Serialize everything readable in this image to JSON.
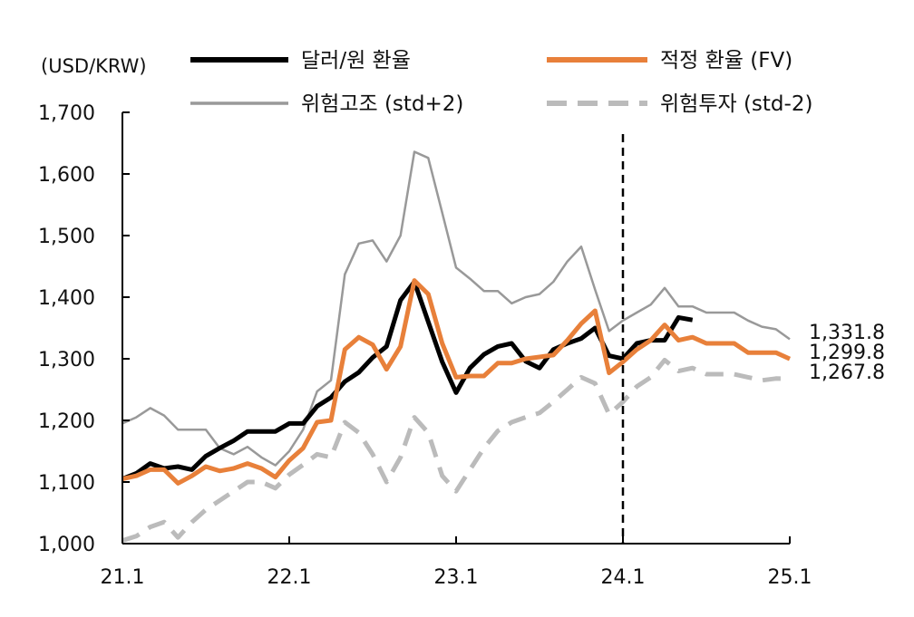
{
  "chart_data": {
    "type": "line",
    "unit_label": "(USD/KRW)",
    "ylim": [
      1000,
      1700
    ],
    "y_ticks": [
      "1,000",
      "1,100",
      "1,200",
      "1,300",
      "1,400",
      "1,500",
      "1,600",
      "1,700"
    ],
    "y_tick_values": [
      1000,
      1100,
      1200,
      1300,
      1400,
      1500,
      1600,
      1700
    ],
    "x_ticks": [
      "21.1",
      "22.1",
      "23.1",
      "24.1",
      "25.1"
    ],
    "x_tick_index": [
      0,
      12,
      24,
      36,
      48
    ],
    "x_count": 49,
    "grid": false,
    "legend_placement": "top",
    "vertical_marker": {
      "x_label": "24.1",
      "style": "dashed"
    },
    "series": [
      {
        "name": "달러/원 환율",
        "color": "#000000",
        "style": "solid-thick",
        "values": [
          1105,
          1114,
          1130,
          1122,
          1125,
          1120,
          1142,
          1155,
          1167,
          1182,
          1182,
          1182,
          1195,
          1195,
          1223,
          1237,
          1263,
          1278,
          1302,
          1320,
          1395,
          1425,
          1360,
          1295,
          1245,
          1285,
          1307,
          1320,
          1325,
          1296,
          1285,
          1315,
          1325,
          1333,
          1350,
          1305,
          1300,
          1325,
          1330,
          1330,
          1367,
          1363
        ]
      },
      {
        "name": "적정 환율 (FV)",
        "color": "#E8803A",
        "style": "solid-thick",
        "values": [
          1105,
          1110,
          1120,
          1120,
          1098,
          1110,
          1125,
          1118,
          1122,
          1130,
          1122,
          1108,
          1135,
          1155,
          1197,
          1200,
          1315,
          1335,
          1323,
          1283,
          1320,
          1427,
          1405,
          1325,
          1270,
          1272,
          1272,
          1293,
          1293,
          1300,
          1303,
          1306,
          1330,
          1357,
          1378,
          1277,
          1295,
          1315,
          1330,
          1355,
          1330,
          1335,
          1325,
          1325,
          1325,
          1310,
          1310,
          1310,
          1299.8
        ],
        "end_label": "1,299.8"
      },
      {
        "name": "위험고조 (std+2)",
        "color": "#999999",
        "style": "solid-thin",
        "values": [
          1195,
          1205,
          1220,
          1208,
          1185,
          1185,
          1185,
          1155,
          1145,
          1157,
          1140,
          1127,
          1150,
          1185,
          1247,
          1265,
          1437,
          1487,
          1492,
          1458,
          1500,
          1636,
          1626,
          1537,
          1448,
          1430,
          1410,
          1410,
          1390,
          1400,
          1405,
          1425,
          1458,
          1482,
          1412,
          1345,
          1362,
          1375,
          1388,
          1415,
          1385,
          1385,
          1375,
          1375,
          1375,
          1362,
          1352,
          1348,
          1331.8
        ],
        "end_label": "1,331.8"
      },
      {
        "name": "위험투자 (std-2)",
        "color": "#BBBBBB",
        "style": "dashed",
        "values": [
          1005,
          1012,
          1027,
          1035,
          1010,
          1035,
          1055,
          1070,
          1085,
          1100,
          1100,
          1090,
          1112,
          1128,
          1145,
          1140,
          1197,
          1180,
          1145,
          1100,
          1140,
          1205,
          1180,
          1110,
          1085,
          1120,
          1155,
          1183,
          1197,
          1205,
          1212,
          1230,
          1250,
          1270,
          1260,
          1210,
          1230,
          1255,
          1270,
          1298,
          1280,
          1285,
          1275,
          1275,
          1275,
          1270,
          1265,
          1268,
          1267.8
        ],
        "end_label": "1,267.8"
      }
    ]
  }
}
